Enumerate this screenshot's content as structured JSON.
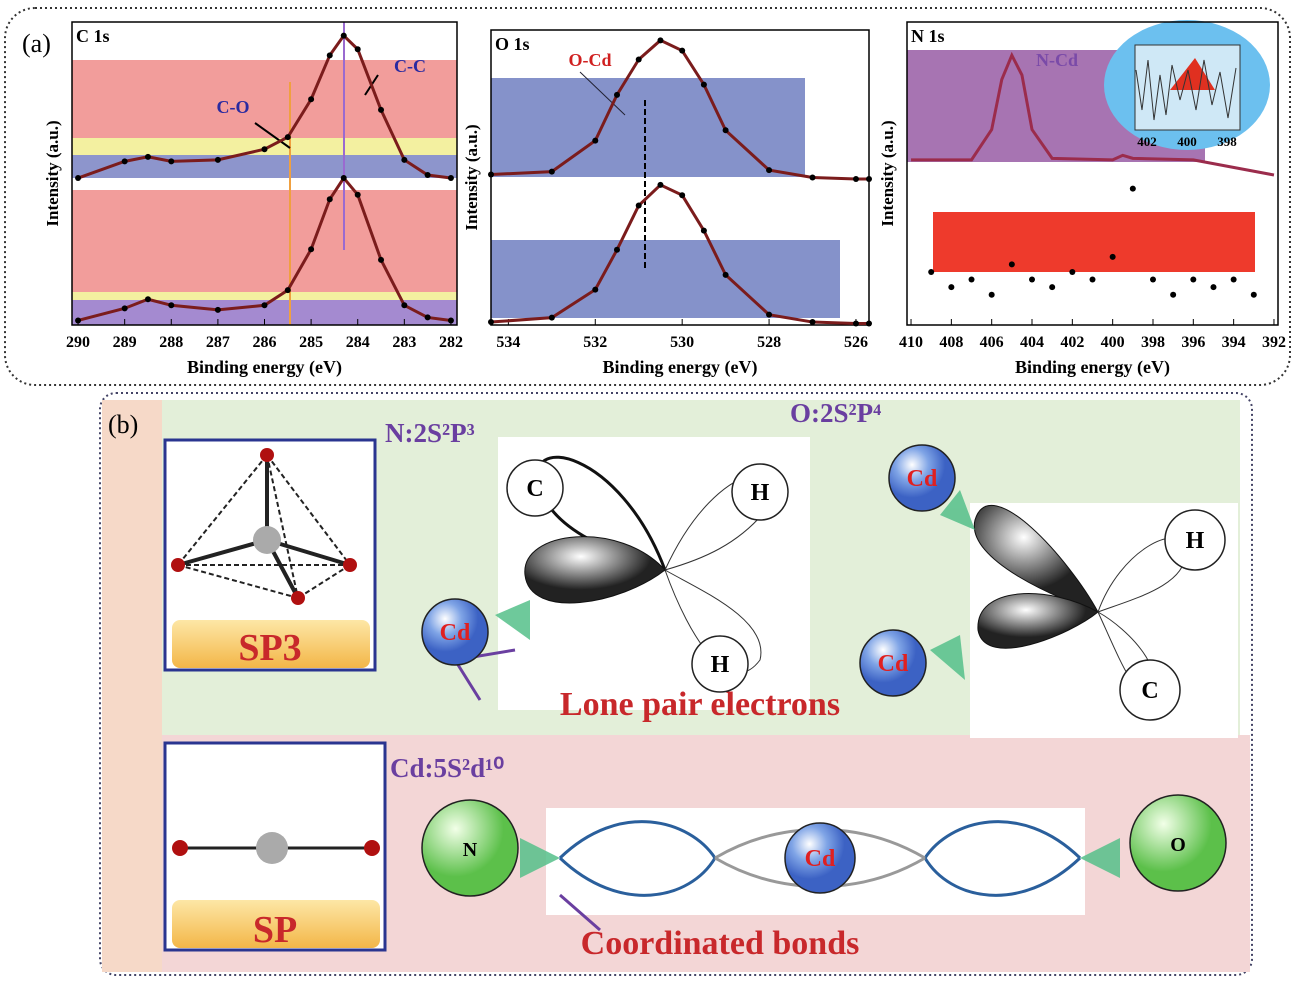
{
  "panel_a": {
    "label": "(a)"
  },
  "chart_data": [
    {
      "type": "line",
      "title": "C 1s",
      "xlabel": "Binding energy (eV)",
      "ylabel": "Intensity (a.u.)",
      "xlim": [
        290.13,
        281.87
      ],
      "ylim": [
        0,
        2
      ],
      "xticks": [
        290,
        289,
        288,
        287,
        286,
        285,
        284,
        283,
        282
      ],
      "annotations": [
        "C-O",
        "C-C"
      ],
      "markers": true,
      "series": [
        {
          "color": "#7b1c1c",
          "x": [
            290,
            289,
            288.5,
            288,
            287,
            286,
            285.5,
            285,
            284.6,
            284.3,
            284,
            283.5,
            283,
            282.5,
            282
          ],
          "values": [
            0.97,
            1.08,
            1.11,
            1.08,
            1.09,
            1.16,
            1.24,
            1.49,
            1.78,
            1.91,
            1.82,
            1.42,
            1.09,
            0.99,
            0.97
          ]
        },
        {
          "color": "#7b1c1c",
          "x": [
            290,
            289,
            288.5,
            288,
            287,
            286,
            285.5,
            285,
            284.6,
            284.3,
            284,
            283.5,
            283,
            282.5,
            282
          ],
          "values": [
            0.03,
            0.11,
            0.17,
            0.13,
            0.1,
            0.13,
            0.23,
            0.5,
            0.83,
            0.97,
            0.86,
            0.43,
            0.13,
            0.05,
            0.03
          ]
        }
      ]
    },
    {
      "type": "line",
      "title": "O 1s",
      "xlabel": "Binding energy (eV)",
      "ylabel": "Intensity (a.u.)",
      "xlim": [
        534.4,
        525.7
      ],
      "ylim": [
        0,
        2
      ],
      "xticks": [
        534,
        532,
        530,
        528,
        526
      ],
      "annotations": [
        "O-Cd"
      ],
      "markers": true,
      "series": [
        {
          "color": "#7b1c1c",
          "x": [
            534.4,
            533,
            532,
            531.5,
            531,
            530.5,
            530,
            529.5,
            529,
            528,
            527,
            526,
            525.7
          ],
          "values": [
            1.02,
            1.04,
            1.25,
            1.56,
            1.8,
            1.93,
            1.86,
            1.63,
            1.32,
            1.05,
            1,
            0.99,
            0.99
          ]
        },
        {
          "color": "#7b1c1c",
          "x": [
            534.4,
            533,
            532,
            531.5,
            531,
            530.5,
            530,
            529.5,
            529,
            528,
            527,
            526,
            525.7
          ],
          "values": [
            0.02,
            0.05,
            0.24,
            0.51,
            0.81,
            0.95,
            0.88,
            0.64,
            0.34,
            0.07,
            0.02,
            0.01,
            0.01
          ]
        }
      ]
    },
    {
      "type": "line",
      "title": "N 1s",
      "xlabel": "Binding energy (eV)",
      "ylabel": "Intensity (a.u.)",
      "xlim": [
        410.2,
        391.8
      ],
      "ylim": [
        0,
        2
      ],
      "xticks": [
        410,
        408,
        406,
        404,
        402,
        400,
        398,
        396,
        394,
        392
      ],
      "annotations": [
        "N-Cd"
      ],
      "markers": false,
      "inset": {
        "xticks": [
          402,
          400,
          398
        ]
      },
      "series": [
        {
          "color": "#9b2c4c",
          "x": [
            410,
            407,
            406,
            405.5,
            405,
            404.5,
            404,
            403,
            400,
            399.5,
            399,
            396,
            392
          ],
          "values": [
            1.09,
            1.09,
            1.29,
            1.62,
            1.78,
            1.65,
            1.29,
            1.1,
            1.09,
            1.12,
            1.1,
            1.09,
            0.99
          ]
        },
        {
          "color": "#111111",
          "mode": "markers",
          "x": [
            409,
            408,
            407,
            406,
            405,
            404,
            403,
            402,
            401,
            400,
            399,
            398,
            397,
            396,
            395,
            394,
            393
          ],
          "values": [
            0.35,
            0.25,
            0.3,
            0.2,
            0.4,
            0.3,
            0.25,
            0.35,
            0.3,
            0.45,
            0.9,
            0.3,
            0.2,
            0.3,
            0.25,
            0.3,
            0.2
          ]
        }
      ]
    }
  ],
  "panel_b": {
    "label": "(b)",
    "configs": [
      "N:2S²P³",
      "O:2S²P⁴",
      "Cd:5S²d¹⁰"
    ],
    "hybrids": [
      "SP3",
      "SP"
    ],
    "captions": [
      "Lone pair electrons",
      "Coordinated bonds"
    ],
    "atoms": [
      "C",
      "H",
      "H",
      "Cd",
      "Cd",
      "Cd",
      "H",
      "C",
      "N",
      "Cd",
      "O"
    ]
  }
}
